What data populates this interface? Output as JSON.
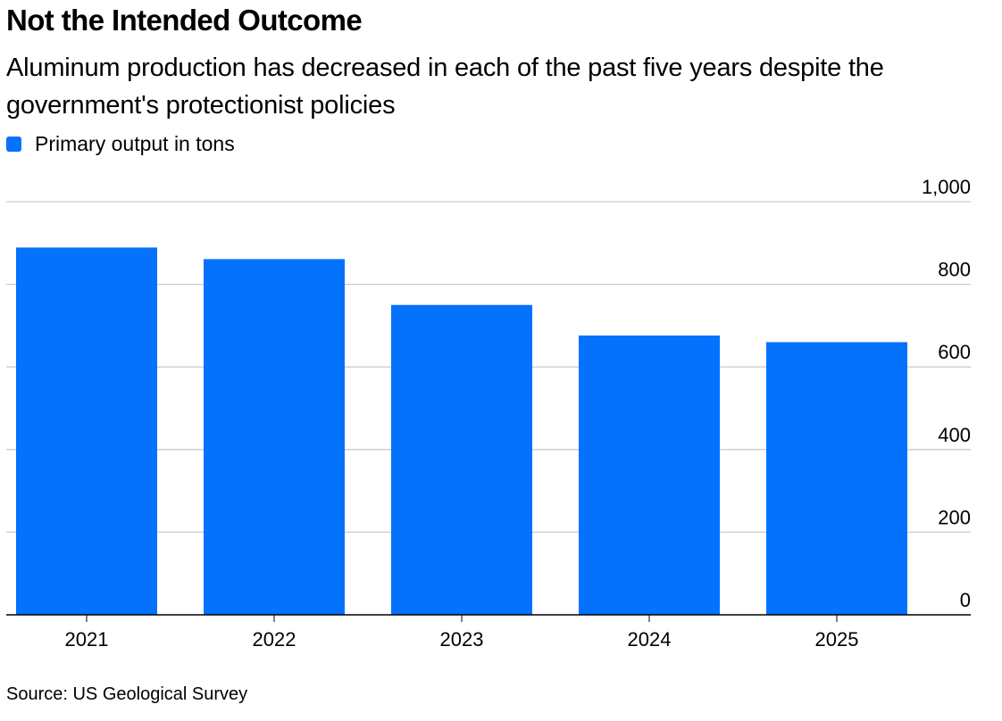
{
  "header": {
    "title": "Not the Intended Outcome",
    "subtitle": "Aluminum production has decreased in each of the past five years despite the government's protectionist policies"
  },
  "legend": {
    "label": "Primary output in tons",
    "color": "#0572fe"
  },
  "chart_data": {
    "type": "bar",
    "title": "Not the Intended Outcome",
    "subtitle": "Aluminum production has decreased in each of the past five years despite the government's protectionist policies",
    "categories": [
      "2021",
      "2022",
      "2023",
      "2024",
      "2025"
    ],
    "series": [
      {
        "name": "Primary output in tons",
        "values": [
          889,
          861,
          750,
          676,
          660
        ],
        "color": "#0572fe"
      }
    ],
    "xlabel": "",
    "ylabel": "",
    "ylim": [
      0,
      1000
    ],
    "yticks": [
      0,
      200,
      400,
      600,
      800,
      1000
    ],
    "ytick_labels": [
      "0",
      "200",
      "400",
      "600",
      "800",
      "1,000"
    ],
    "y_axis_position": "right",
    "grid": true,
    "legend_position": "top-left"
  },
  "footer": {
    "source": "Source: US Geological Survey"
  }
}
